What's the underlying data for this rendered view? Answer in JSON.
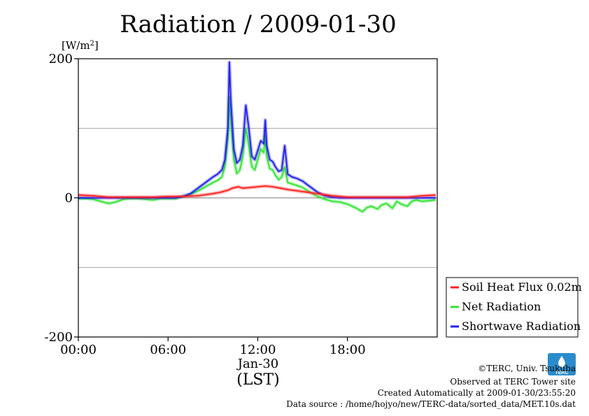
{
  "title": "Radiation / 2009-01-30",
  "chart_data": {
    "type": "line",
    "title": "Radiation / 2009-01-30",
    "ylabel_unit": "[W/m2]",
    "y_ticks": [
      "200",
      "0",
      "-200"
    ],
    "x_ticks": [
      "00:00",
      "06:00",
      "12:00",
      "18:00"
    ],
    "date_label": "Jan-30",
    "xlabel": "(LST)",
    "ylim": [
      -200,
      200
    ],
    "xlim": [
      0,
      24
    ],
    "grid": true,
    "legend_position": "bottom-right",
    "series": [
      {
        "name": "Soil Heat Flux 0.02m",
        "color": "#ff2020",
        "x": [
          0,
          1,
          2,
          3,
          4,
          5,
          6,
          7,
          8,
          9,
          9.5,
          10,
          10.3,
          10.7,
          11,
          11.5,
          12,
          12.5,
          13,
          13.5,
          14,
          15,
          16,
          17,
          18,
          19,
          20,
          21,
          22,
          23,
          23.9
        ],
        "y": [
          4,
          3,
          1,
          1,
          1,
          1,
          2,
          2,
          3,
          6,
          8,
          11,
          14,
          16,
          14,
          15,
          16,
          17,
          16,
          14,
          12,
          9,
          6,
          3,
          1,
          1,
          1,
          1,
          1,
          3,
          4
        ]
      },
      {
        "name": "Net Radiation",
        "color": "#33e533",
        "x": [
          0,
          0.5,
          1,
          1.5,
          2,
          2.5,
          3,
          3.5,
          4,
          4.5,
          5,
          5.5,
          6,
          6.5,
          7,
          7.5,
          8,
          8.5,
          9,
          9.3,
          9.6,
          9.8,
          10,
          10.1,
          10.2,
          10.4,
          10.6,
          10.8,
          11,
          11.2,
          11.4,
          11.6,
          11.8,
          12,
          12.2,
          12.4,
          12.5,
          12.6,
          12.8,
          13,
          13.2,
          13.4,
          13.6,
          13.8,
          14,
          14.3,
          14.6,
          15,
          15.5,
          16,
          16.5,
          17,
          17.5,
          18,
          18.3,
          18.6,
          19,
          19.3,
          19.6,
          20,
          20.3,
          20.6,
          21,
          21.3,
          21.6,
          22,
          22.3,
          22.6,
          23,
          23.5,
          23.9
        ],
        "y": [
          -1,
          -1,
          -2,
          -5,
          -8,
          -6,
          -2,
          -1,
          -1,
          -2,
          -3,
          -1,
          -1,
          -1,
          2,
          5,
          10,
          16,
          22,
          25,
          30,
          45,
          85,
          145,
          110,
          55,
          35,
          40,
          60,
          100,
          75,
          45,
          40,
          55,
          70,
          65,
          90,
          60,
          42,
          40,
          32,
          26,
          30,
          44,
          22,
          20,
          18,
          15,
          8,
          2,
          -2,
          -5,
          -6,
          -9,
          -12,
          -15,
          -20,
          -14,
          -12,
          -16,
          -10,
          -8,
          -15,
          -5,
          -9,
          -12,
          -5,
          -3,
          -5,
          -4,
          -3
        ]
      },
      {
        "name": "Shortwave Radiation",
        "color": "#2020ee",
        "x": [
          0,
          0.5,
          1,
          1.5,
          2,
          2.5,
          3,
          3.5,
          4,
          4.5,
          5,
          5.5,
          6,
          6.5,
          7,
          7.5,
          8,
          8.5,
          9,
          9.3,
          9.6,
          9.8,
          10,
          10.1,
          10.2,
          10.4,
          10.6,
          10.8,
          11,
          11.2,
          11.4,
          11.6,
          11.8,
          12,
          12.2,
          12.4,
          12.5,
          12.6,
          12.8,
          13,
          13.2,
          13.4,
          13.6,
          13.8,
          14,
          14.3,
          14.6,
          15,
          15.5,
          16,
          16.5,
          17,
          17.5,
          18,
          20,
          22,
          23.9
        ],
        "y": [
          0,
          0,
          0,
          0,
          0,
          0,
          0,
          0,
          0,
          0,
          0,
          0,
          0,
          0,
          2,
          6,
          14,
          22,
          30,
          34,
          40,
          55,
          100,
          195,
          140,
          70,
          50,
          55,
          75,
          133,
          100,
          60,
          55,
          68,
          82,
          78,
          112,
          75,
          55,
          52,
          44,
          38,
          40,
          75,
          34,
          30,
          28,
          24,
          16,
          8,
          3,
          1,
          0,
          0,
          0,
          0,
          0
        ]
      }
    ]
  },
  "footer": {
    "copyright": "©TERC, Univ. Tsukuba",
    "observed": "Observed at TERC Tower site",
    "created": "Created Automatically at 2009-01-30/23:55:20",
    "source": "Data source : /home/hojyo/new/TERC-data/sorted_data/MET.10s.dat",
    "logo_text": "TERC"
  }
}
